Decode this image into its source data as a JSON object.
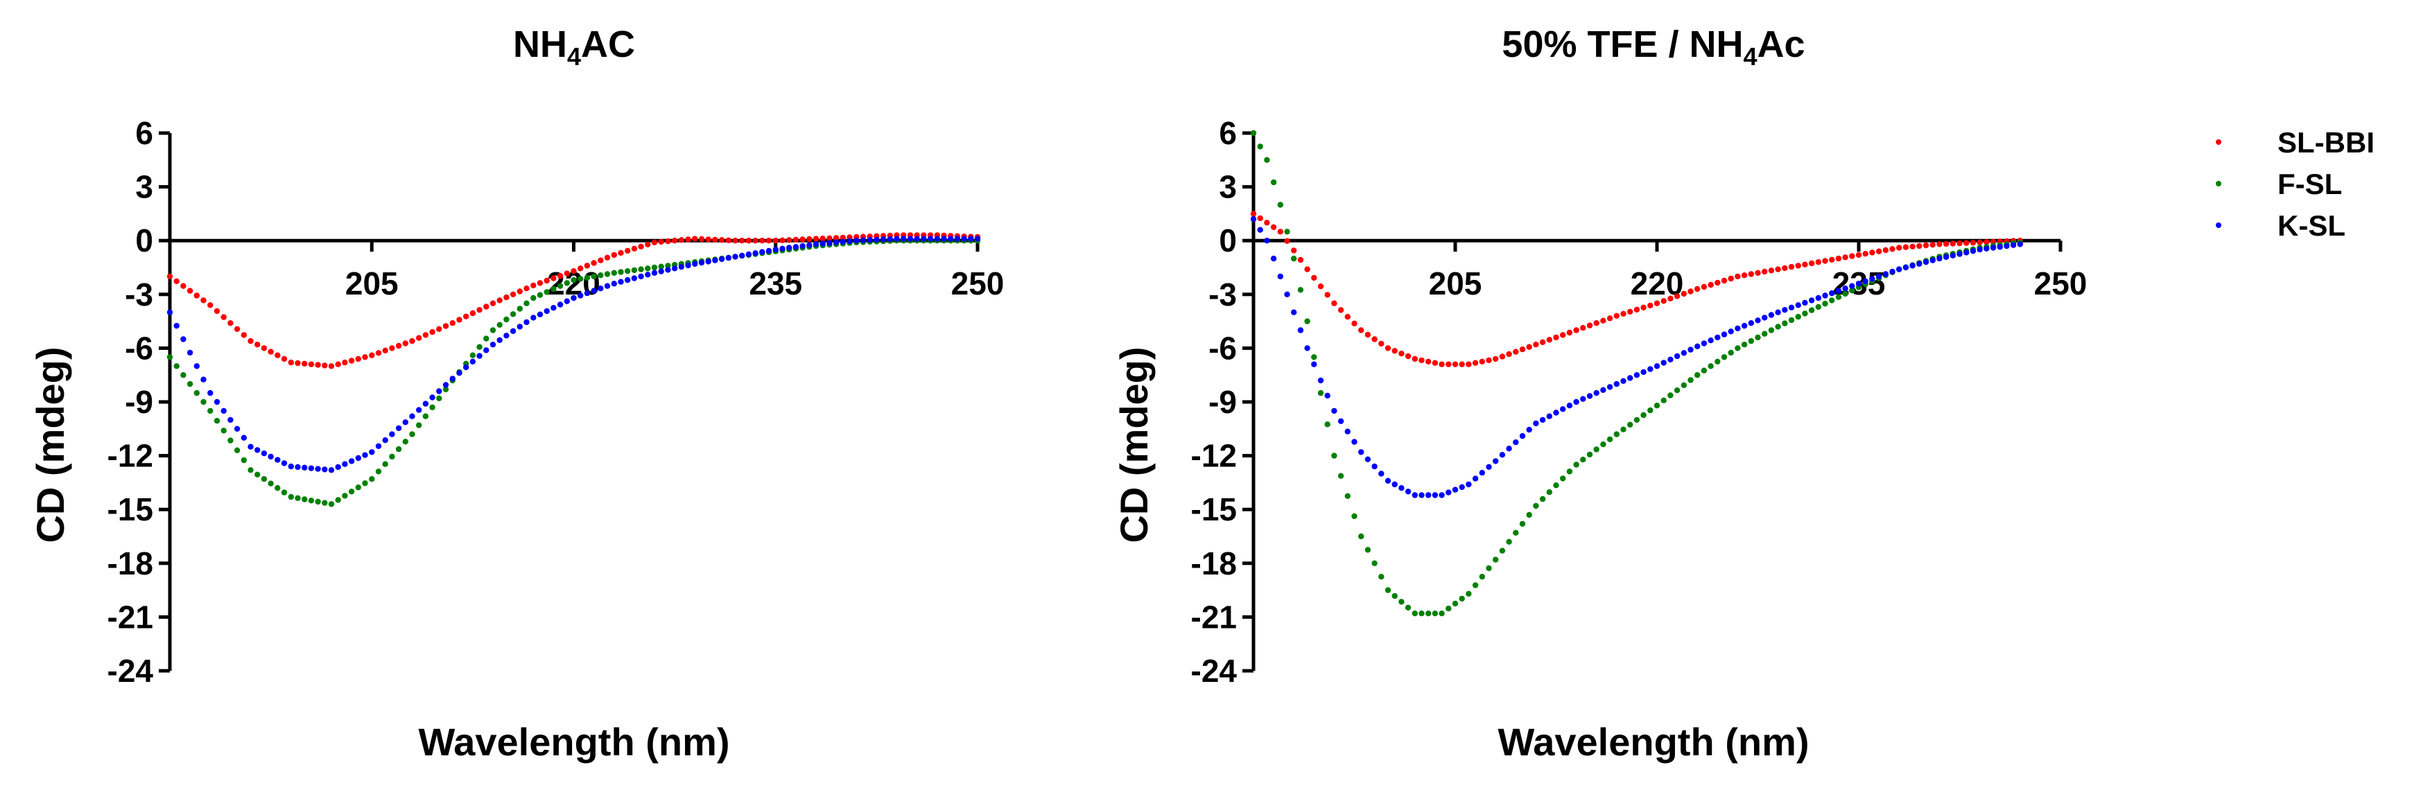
{
  "chart_data": [
    {
      "type": "scatter",
      "title": {
        "main": "NH",
        "sub": "4",
        "tail": "AC"
      },
      "xlabel": "Wavelength  (nm)",
      "ylabel": "CD (mdeg)",
      "xlim": [
        190,
        250
      ],
      "ylim": [
        -24,
        6
      ],
      "xticks": [
        205,
        220,
        235,
        250
      ],
      "yticks": [
        6,
        3,
        0,
        -3,
        -6,
        -9,
        -12,
        -15,
        -18,
        -21,
        -24
      ],
      "legend_position": "none",
      "series": [
        {
          "name": "SL-BBI",
          "color": "#ff0000",
          "x": [
            190,
            193,
            196,
            199,
            202,
            205,
            208,
            211,
            214,
            217,
            220,
            223,
            226,
            229,
            232,
            235,
            238,
            241,
            244,
            247,
            250
          ],
          "y": [
            -2.0,
            -3.6,
            -5.6,
            -6.8,
            -7.0,
            -6.4,
            -5.6,
            -4.6,
            -3.5,
            -2.5,
            -1.7,
            -0.8,
            -0.1,
            0.1,
            0.0,
            0.0,
            0.1,
            0.2,
            0.3,
            0.3,
            0.2
          ]
        },
        {
          "name": "F-SL",
          "color": "#008000",
          "x": [
            190,
            193,
            196,
            199,
            202,
            205,
            208,
            211,
            214,
            217,
            220,
            223,
            226,
            229,
            232,
            235,
            238,
            241,
            244,
            247,
            250
          ],
          "y": [
            -6.5,
            -9.5,
            -12.8,
            -14.3,
            -14.7,
            -13.3,
            -10.8,
            -7.8,
            -5.0,
            -3.2,
            -2.2,
            -1.8,
            -1.5,
            -1.2,
            -0.9,
            -0.6,
            -0.3,
            -0.1,
            0.0,
            0.0,
            0.0
          ]
        },
        {
          "name": "K-SL",
          "color": "#0000ff",
          "x": [
            190,
            193,
            196,
            199,
            202,
            205,
            208,
            211,
            214,
            217,
            220,
            223,
            226,
            229,
            232,
            235,
            238,
            241,
            244,
            247,
            250
          ],
          "y": [
            -4.0,
            -8.5,
            -11.5,
            -12.6,
            -12.8,
            -11.8,
            -9.8,
            -7.7,
            -5.8,
            -4.3,
            -3.2,
            -2.4,
            -1.8,
            -1.3,
            -0.9,
            -0.5,
            -0.2,
            0.0,
            0.1,
            0.1,
            0.1
          ]
        }
      ]
    },
    {
      "type": "scatter",
      "title": {
        "main": "50% TFE / NH",
        "sub": "4",
        "tail": "Ac"
      },
      "xlabel": "Wavelength  (nm)",
      "ylabel": "CD (mdeg)",
      "xlim": [
        190,
        250
      ],
      "ylim": [
        -24,
        6
      ],
      "xticks": [
        205,
        220,
        235,
        250
      ],
      "yticks": [
        6,
        3,
        0,
        -3,
        -6,
        -9,
        -12,
        -15,
        -18,
        -21,
        -24
      ],
      "legend_position": "right",
      "series": [
        {
          "name": "SL-BBI",
          "color": "#ff0000",
          "x": [
            190,
            192,
            194,
            196,
            198,
            200,
            202,
            204,
            206,
            208,
            211,
            214,
            217,
            220,
            223,
            226,
            229,
            232,
            235,
            238,
            241,
            244,
            247
          ],
          "y": [
            1.5,
            0.5,
            -1.6,
            -3.5,
            -5.0,
            -6.0,
            -6.6,
            -6.9,
            -6.9,
            -6.6,
            -5.8,
            -5.0,
            -4.2,
            -3.5,
            -2.7,
            -2.0,
            -1.6,
            -1.2,
            -0.8,
            -0.4,
            -0.2,
            -0.1,
            0.0
          ]
        },
        {
          "name": "F-SL",
          "color": "#008000",
          "x": [
            190,
            191,
            192,
            193,
            194,
            195,
            196,
            198,
            200,
            202,
            204,
            206,
            208,
            211,
            214,
            217,
            220,
            223,
            226,
            229,
            232,
            235,
            238,
            241,
            244,
            247
          ],
          "y": [
            6.0,
            4.5,
            2.0,
            -1.0,
            -4.5,
            -8.5,
            -12.0,
            -16.5,
            -19.5,
            -20.8,
            -20.8,
            -19.7,
            -17.8,
            -14.8,
            -12.5,
            -10.8,
            -9.2,
            -7.5,
            -6.0,
            -4.8,
            -3.7,
            -2.6,
            -1.6,
            -0.9,
            -0.4,
            -0.1
          ]
        },
        {
          "name": "K-SL",
          "color": "#0000ff",
          "x": [
            190,
            191,
            192,
            193,
            194,
            195,
            196,
            198,
            200,
            202,
            204,
            206,
            208,
            211,
            214,
            217,
            220,
            223,
            226,
            229,
            232,
            235,
            238,
            241,
            244,
            247
          ],
          "y": [
            1.2,
            0.0,
            -2.0,
            -4.0,
            -6.0,
            -7.8,
            -9.5,
            -11.8,
            -13.4,
            -14.2,
            -14.2,
            -13.6,
            -12.3,
            -10.2,
            -9.0,
            -8.0,
            -7.0,
            -5.9,
            -4.9,
            -4.0,
            -3.2,
            -2.4,
            -1.6,
            -1.0,
            -0.5,
            -0.2
          ]
        }
      ]
    }
  ],
  "legend": {
    "items": [
      {
        "label": "SL-BBI",
        "color": "#ff0000"
      },
      {
        "label": "F-SL",
        "color": "#008000"
      },
      {
        "label": "K-SL",
        "color": "#0000ff"
      }
    ]
  }
}
